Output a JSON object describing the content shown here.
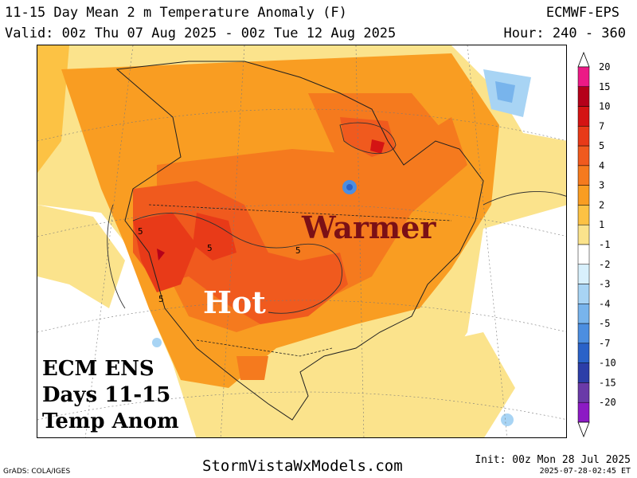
{
  "header": {
    "title": "11-15 Day Mean 2 m Temperature Anomaly (F)",
    "valid": "Valid: 00z Thu 07 Aug 2025 - 00z Tue 12 Aug 2025",
    "model": "ECMWF-EPS",
    "hour": "Hour: 240 - 360"
  },
  "annotations": {
    "warmer": "Warmer",
    "hot": "Hot",
    "ens_line1": "ECM ENS",
    "ens_line2": "Days 11-15",
    "ens_line3": "Temp Anom"
  },
  "contour_labels": [
    "5",
    "5",
    "5",
    "5"
  ],
  "colorbar": {
    "levels": [
      "20",
      "15",
      "10",
      "7",
      "5",
      "4",
      "3",
      "2",
      "1",
      "-1",
      "-2",
      "-3",
      "-4",
      "-5",
      "-7",
      "-10",
      "-15",
      "-20"
    ],
    "colors": [
      "#ec1a86",
      "#b5001a",
      "#d41414",
      "#e83a18",
      "#f05a1e",
      "#f57a1e",
      "#f99d22",
      "#fcc244",
      "#fbe38c",
      "#ffffff",
      "#d8f0fc",
      "#a8d4f4",
      "#78b4ec",
      "#4c8ee0",
      "#2a62c8",
      "#2c3ea8",
      "#6a3aa8",
      "#8c1ac4"
    ]
  },
  "footer": {
    "site": "StormVistaWxModels.com",
    "init": "Init: 00z Mon 28 Jul 2025",
    "stamp": "2025-07-28-02:45 ET",
    "grads": "GrADS: COLA/IGES"
  }
}
